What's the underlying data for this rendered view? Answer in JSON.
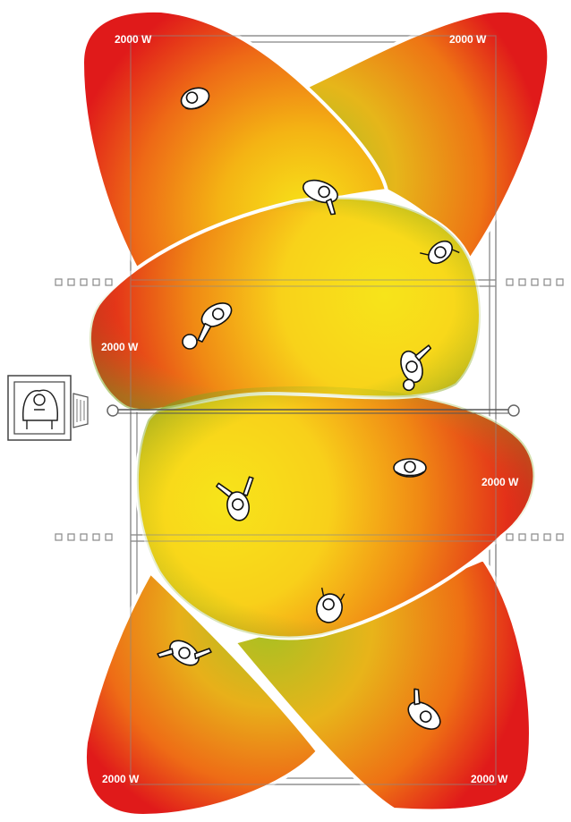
{
  "lamps": [
    {
      "id": "top-left",
      "label": "2000 W"
    },
    {
      "id": "top-right",
      "label": "2000 W"
    },
    {
      "id": "mid-left",
      "label": "2000 W"
    },
    {
      "id": "mid-right",
      "label": "2000 W"
    },
    {
      "id": "bottom-left",
      "label": "2000 W"
    },
    {
      "id": "bottom-right",
      "label": "2000 W"
    }
  ],
  "icons": {
    "player": "player-topview-icon",
    "ball": "ball-icon",
    "camera": "camera-icon",
    "net": "net-icon",
    "substitution_marks": "dashed-marker-icon"
  },
  "colors": {
    "beam_outer": "#e01a1a",
    "beam_mid": "#f28c12",
    "beam_center": "#f7e41a",
    "beam_edge": "#8fb01e",
    "court_lines": "#8a8a8a",
    "outline": "#ffffff"
  }
}
